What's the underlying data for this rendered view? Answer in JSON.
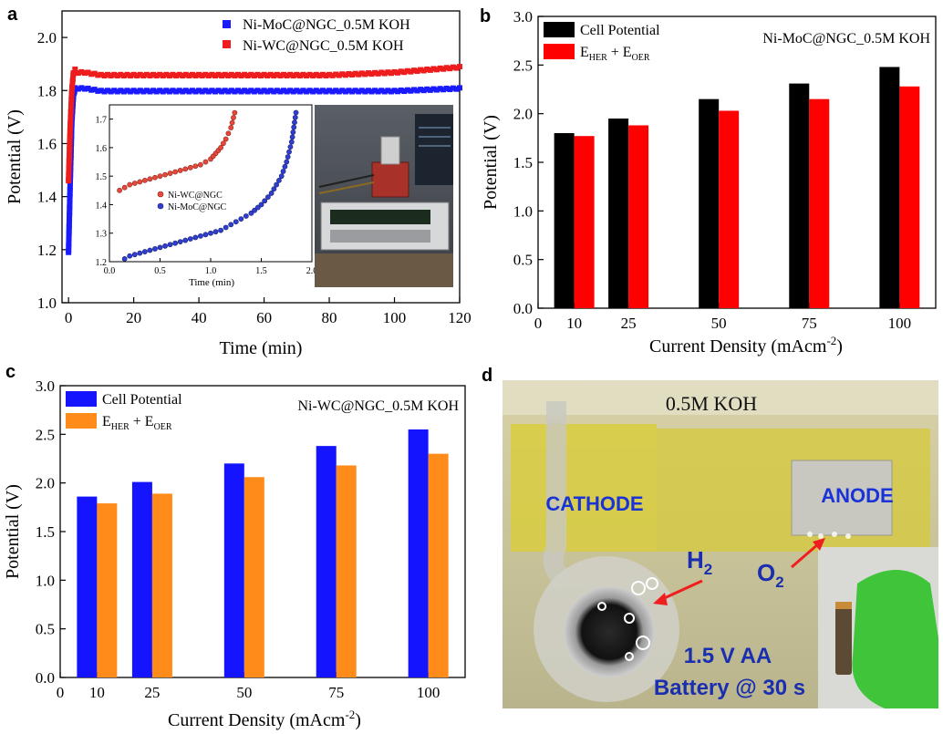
{
  "panels": {
    "a": {
      "letter": "a"
    },
    "b": {
      "letter": "b"
    },
    "c": {
      "letter": "c"
    },
    "d": {
      "letter": "d",
      "label_electrolyte": "0.5M KOH",
      "label_cathode": "CATHODE",
      "label_anode": "ANODE",
      "label_h2": "H",
      "label_h2_sub": "2",
      "label_o2": "O",
      "label_o2_sub": "2",
      "label_battery_line1": "1.5 V AA",
      "label_battery_line2": "Battery @ 30 s"
    }
  },
  "chart_data": [
    {
      "id": "a",
      "type": "line",
      "title": "",
      "xlabel": "Time (min)",
      "ylabel": "Potential (V)",
      "xlim": [
        -2,
        120
      ],
      "ylim": [
        1.0,
        2.1
      ],
      "xticks": [
        0,
        20,
        40,
        60,
        80,
        100,
        120
      ],
      "yticks": [
        1.0,
        1.2,
        1.4,
        1.6,
        1.8,
        2.0
      ],
      "series": [
        {
          "name": "Ni-MoC@NGC_0.5M KOH",
          "color": "#1a1aff",
          "x": [
            0,
            0.5,
            1,
            1.5,
            2,
            3,
            5,
            10,
            20,
            40,
            60,
            80,
            100,
            120
          ],
          "y": [
            1.19,
            1.45,
            1.68,
            1.78,
            1.81,
            1.81,
            1.81,
            1.8,
            1.8,
            1.8,
            1.8,
            1.8,
            1.8,
            1.81
          ]
        },
        {
          "name": "Ni-WC@NGC_0.5M KOH",
          "color": "#ee1c1c",
          "x": [
            0,
            0.5,
            1,
            1.5,
            2,
            3,
            5,
            10,
            20,
            40,
            60,
            80,
            100,
            120
          ],
          "y": [
            1.46,
            1.66,
            1.8,
            1.87,
            1.88,
            1.87,
            1.87,
            1.86,
            1.86,
            1.86,
            1.86,
            1.86,
            1.87,
            1.89
          ]
        }
      ],
      "inset": {
        "xlabel": "Time (min)",
        "xlim": [
          0,
          2.0
        ],
        "ylim": [
          1.2,
          1.75
        ],
        "xticks": [
          0.0,
          0.5,
          1.0,
          1.5,
          2.0
        ],
        "xtick_labels": [
          "0.0",
          "0.5",
          "1.0",
          "1.5",
          "2.0"
        ],
        "yticks": [
          1.2,
          1.3,
          1.4,
          1.5,
          1.6,
          1.7
        ],
        "ytick_labels": [
          "1.2",
          "1.3",
          "1.4",
          "1.5",
          "1.6",
          "1.7"
        ],
        "series": [
          {
            "name": "Ni-WC@NGC",
            "color": "#e8473a",
            "x": [
              0.1,
              0.15,
              0.2,
              0.3,
              0.4,
              0.5,
              0.6,
              0.7,
              0.8,
              0.9,
              1.0,
              1.05,
              1.1,
              1.15,
              1.2,
              1.25
            ],
            "y": [
              1.45,
              1.46,
              1.47,
              1.48,
              1.49,
              1.5,
              1.51,
              1.52,
              1.53,
              1.54,
              1.56,
              1.58,
              1.6,
              1.63,
              1.67,
              1.74
            ]
          },
          {
            "name": "Ni-MoC@NGC",
            "color": "#2e3fd1",
            "x": [
              0.15,
              0.2,
              0.3,
              0.4,
              0.5,
              0.6,
              0.7,
              0.8,
              0.9,
              1.0,
              1.1,
              1.2,
              1.3,
              1.4,
              1.5,
              1.6,
              1.7,
              1.75,
              1.8,
              1.85
            ],
            "y": [
              1.21,
              1.22,
              1.23,
              1.24,
              1.25,
              1.26,
              1.27,
              1.28,
              1.29,
              1.3,
              1.31,
              1.33,
              1.35,
              1.37,
              1.4,
              1.44,
              1.5,
              1.55,
              1.62,
              1.74
            ]
          }
        ]
      }
    },
    {
      "id": "b",
      "type": "bar",
      "title": "Ni-MoC@NGC_0.5M KOH",
      "xlabel": "Current Density (mAcm",
      "xlabel_sup": "-2",
      "xlabel_end": ")",
      "ylabel": "Potential (V)",
      "xlim": [
        0,
        110
      ],
      "ylim": [
        0.0,
        3.0
      ],
      "xticks": [
        0,
        10,
        25,
        50,
        75,
        100
      ],
      "yticks": [
        0.0,
        0.5,
        1.0,
        1.5,
        2.0,
        2.5,
        3.0
      ],
      "ytick_labels": [
        "0.0",
        "0.5",
        "1.0",
        "1.5",
        "2.0",
        "2.5",
        "3.0"
      ],
      "categories": [
        10,
        25,
        50,
        75,
        100
      ],
      "series": [
        {
          "name": "Cell Potential",
          "color": "#000000",
          "values": [
            1.8,
            1.95,
            2.15,
            2.31,
            2.48
          ]
        },
        {
          "name": "E",
          "name_sub": "HER",
          "name_mid": " + E",
          "name_sub2": "OER",
          "color": "#ff0000",
          "values": [
            1.77,
            1.88,
            2.03,
            2.15,
            2.28
          ]
        }
      ]
    },
    {
      "id": "c",
      "type": "bar",
      "title": "Ni-WC@NGC_0.5M KOH",
      "xlabel": "Current Density (mAcm",
      "xlabel_sup": "-2",
      "xlabel_end": ")",
      "ylabel": "Potential (V)",
      "xlim": [
        0,
        110
      ],
      "ylim": [
        0.0,
        3.0
      ],
      "xticks": [
        0,
        10,
        25,
        50,
        75,
        100
      ],
      "yticks": [
        0.0,
        0.5,
        1.0,
        1.5,
        2.0,
        2.5,
        3.0
      ],
      "ytick_labels": [
        "0.0",
        "0.5",
        "1.0",
        "1.5",
        "2.0",
        "2.5",
        "3.0"
      ],
      "categories": [
        10,
        25,
        50,
        75,
        100
      ],
      "series": [
        {
          "name": "Cell Potential",
          "color": "#1414ff",
          "values": [
            1.86,
            2.01,
            2.2,
            2.38,
            2.55
          ]
        },
        {
          "name": "E",
          "name_sub": "HER",
          "name_mid": " + E",
          "name_sub2": "OER",
          "color": "#ff8c1a",
          "values": [
            1.79,
            1.89,
            2.06,
            2.18,
            2.3
          ]
        }
      ]
    }
  ]
}
